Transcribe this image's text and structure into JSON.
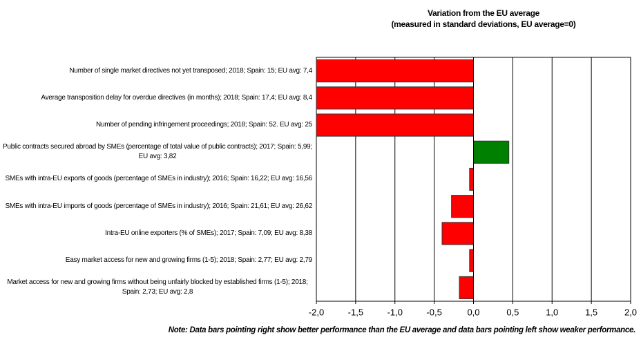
{
  "chart_data": {
    "type": "barh",
    "title": "Variation from the EU average",
    "subtitle": "(measured in standard deviations, EU average=0)",
    "categories": [
      "Number of single market directives not yet transposed; 2018; Spain: 15; EU avg: 7,4",
      "Average transposition delay for overdue directives (in months); 2018; Spain: 17,4; EU avg: 8,4",
      "Number of pending infringement proceedings; 2018; Spain: 52. EU avg: 25",
      "Public contracts secured abroad by SMEs (percentage of total value of public contracts); 2017; Spain: 5,99; EU avg: 3,82",
      "SMEs with intra-EU exports of goods (percentage of SMEs in industry); 2016; Spain: 16,22; EU avg: 16,56",
      "SMEs with intra-EU imports of goods (percentage of SMEs in industry); 2016; Spain: 21,61; EU avg: 26,62",
      "Intra-EU online exporters (% of SMEs); 2017; Spain: 7,09; EU avg: 8,38",
      "Easy market access for new and growing firms (1-5); 2018; Spain: 2,77; EU avg: 2,79",
      "Market access for new and growing firms without being unfairly blocked by established firms (1-5); 2018; Spain: 2,73; EU avg: 2,8"
    ],
    "values": [
      -2,
      -2,
      -2,
      0.45,
      -0.05,
      -0.28,
      -0.4,
      -0.05,
      -0.18
    ],
    "colors": [
      "#ff0000",
      "#ff0000",
      "#ff0000",
      "#008000",
      "#ff0000",
      "#ff0000",
      "#ff0000",
      "#ff0000",
      "#ff0000"
    ],
    "xlim": [
      -2,
      2
    ],
    "xticks": [
      {
        "value": -2,
        "label": "-2,0"
      },
      {
        "value": -1.5,
        "label": "-1,5"
      },
      {
        "value": -1,
        "label": "-1,0"
      },
      {
        "value": -0.5,
        "label": "-0,5"
      },
      {
        "value": 0,
        "label": "0,0"
      },
      {
        "value": 0.5,
        "label": "0,5"
      },
      {
        "value": 1,
        "label": "1,0"
      },
      {
        "value": 1.5,
        "label": "1,5"
      },
      {
        "value": 2,
        "label": "2,0"
      }
    ],
    "grid": true,
    "note": "Note: Data bars pointing right show better performance than the EU average and data bars pointing left show weaker performance."
  }
}
